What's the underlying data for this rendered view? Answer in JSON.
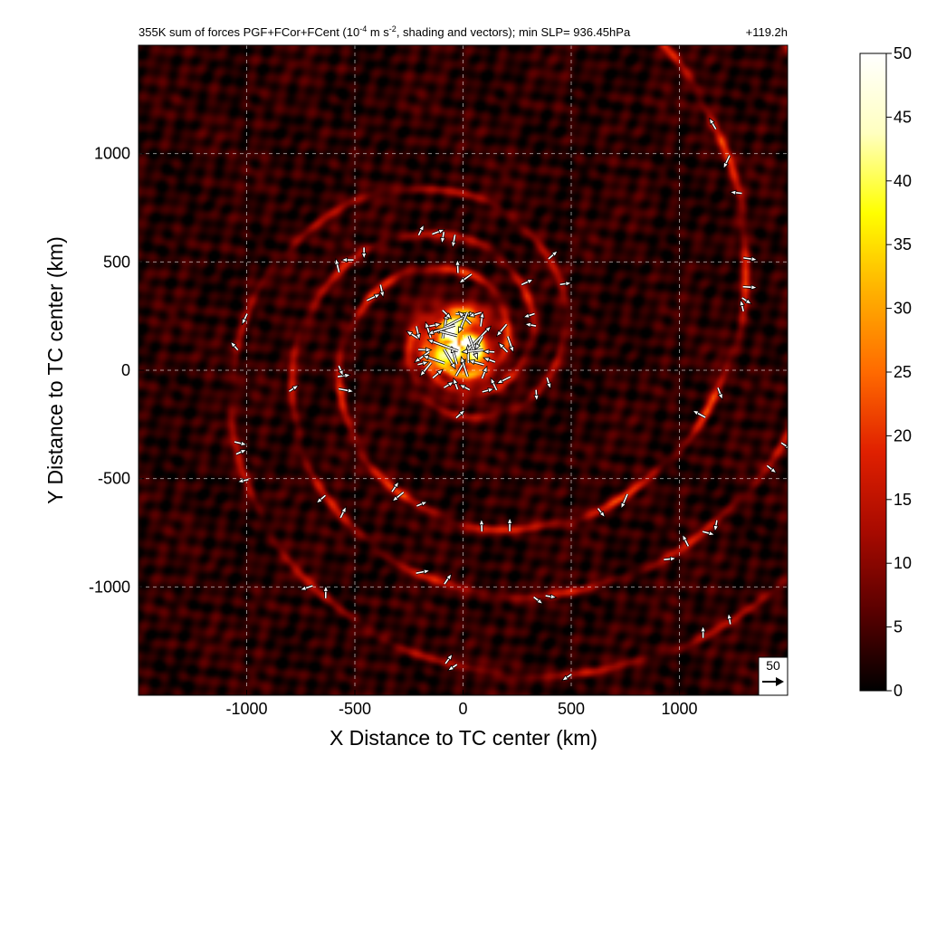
{
  "chart_data": {
    "type": "heatmap",
    "title_prefix": "355K sum of forces PGF+FCor+FCent (10",
    "title_exponent_1": "-4",
    "title_units": " m s",
    "title_exponent_2": "-2",
    "title_suffix": ", shading and vectors); min SLP= 936.45hPa",
    "time_label": "+119.2h",
    "xlabel": "X Distance to TC center (km)",
    "ylabel": "Y Distance to TC center (km)",
    "xlim": [
      -1500,
      1500
    ],
    "ylim": [
      -1500,
      1500
    ],
    "xticks": [
      -1000,
      -500,
      0,
      500,
      1000
    ],
    "xtick_labels": [
      "-1000",
      "-500",
      "0",
      "500",
      "1000"
    ],
    "yticks": [
      -1000,
      -500,
      0,
      500,
      1000
    ],
    "ytick_labels": [
      "-1000",
      "-500",
      "0",
      "500",
      "1000"
    ],
    "grid": true,
    "colorbar": {
      "min": 0,
      "max": 50,
      "ticks": [
        0,
        5,
        10,
        15,
        20,
        25,
        30,
        35,
        40,
        45,
        50
      ],
      "tick_labels": [
        "0",
        "5",
        "10",
        "15",
        "20",
        "25",
        "30",
        "35",
        "40",
        "45",
        "50"
      ],
      "colormap": [
        "#000000",
        "#5a0000",
        "#a80a00",
        "#e02000",
        "#ff6a00",
        "#ffb000",
        "#ffff00",
        "#ffffc0",
        "#ffffff"
      ]
    },
    "reference_vector": {
      "magnitude": 50,
      "label": "50"
    },
    "features": {
      "center_km": [
        -20,
        120
      ],
      "peak_value": 50,
      "core_radius_km": 200,
      "spiral_bands": [
        {
          "r0_km": 220,
          "growth": 0.28,
          "amplitude": 18
        },
        {
          "r0_km": 330,
          "growth": 0.26,
          "amplitude": 14
        },
        {
          "r0_km": 480,
          "growth": 0.24,
          "amplitude": 11
        }
      ],
      "background_level": 5
    }
  }
}
